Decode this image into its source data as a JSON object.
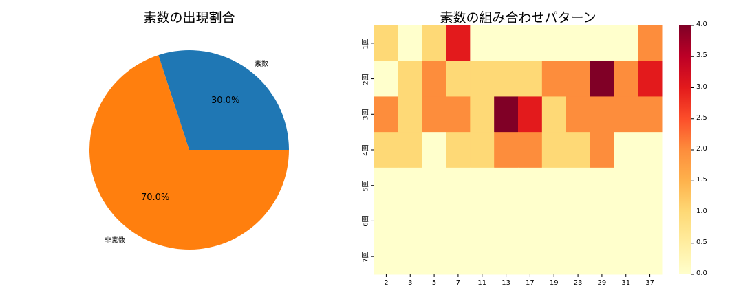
{
  "chart_data": [
    {
      "type": "pie",
      "title": "素数の出現割合",
      "labels": [
        "素数",
        "非素数"
      ],
      "values": [
        30.0,
        70.0
      ],
      "autopct": [
        "30.0%",
        "70.0%"
      ],
      "colors": [
        "#1f77b4",
        "#ff7f0e"
      ],
      "start_angle": 0
    },
    {
      "type": "heatmap",
      "title": "素数の組み合わせパターン",
      "x_labels": [
        "2",
        "3",
        "5",
        "7",
        "11",
        "13",
        "17",
        "19",
        "23",
        "29",
        "31",
        "37"
      ],
      "y_labels": [
        "1回",
        "2回",
        "3回",
        "4回",
        "5回",
        "6回",
        "7回"
      ],
      "values": [
        [
          1,
          0,
          1,
          3,
          0,
          0,
          0,
          0,
          0,
          0,
          0,
          2
        ],
        [
          0,
          1,
          2,
          1,
          1,
          1,
          1,
          2,
          2,
          4,
          2,
          3
        ],
        [
          2,
          1,
          2,
          2,
          1,
          4,
          3,
          1,
          2,
          2,
          2,
          2
        ],
        [
          1,
          1,
          0,
          1,
          1,
          2,
          2,
          1,
          1,
          2,
          0,
          0
        ],
        [
          0,
          0,
          0,
          0,
          0,
          0,
          0,
          0,
          0,
          0,
          0,
          0
        ],
        [
          0,
          0,
          0,
          0,
          0,
          0,
          0,
          0,
          0,
          0,
          0,
          0
        ],
        [
          0,
          0,
          0,
          0,
          0,
          0,
          0,
          0,
          0,
          0,
          0,
          0
        ]
      ],
      "colormap": "YlOrRd",
      "vmin": 0.0,
      "vmax": 4.0,
      "colorbar_ticks": [
        "0.0",
        "0.5",
        "1.0",
        "1.5",
        "2.0",
        "2.5",
        "3.0",
        "3.5",
        "4.0"
      ],
      "cell_colors": {
        "0": "#ffffcc",
        "1": "#fed976",
        "2": "#fd8d3c",
        "3": "#e31a1c",
        "4": "#800026"
      }
    }
  ]
}
